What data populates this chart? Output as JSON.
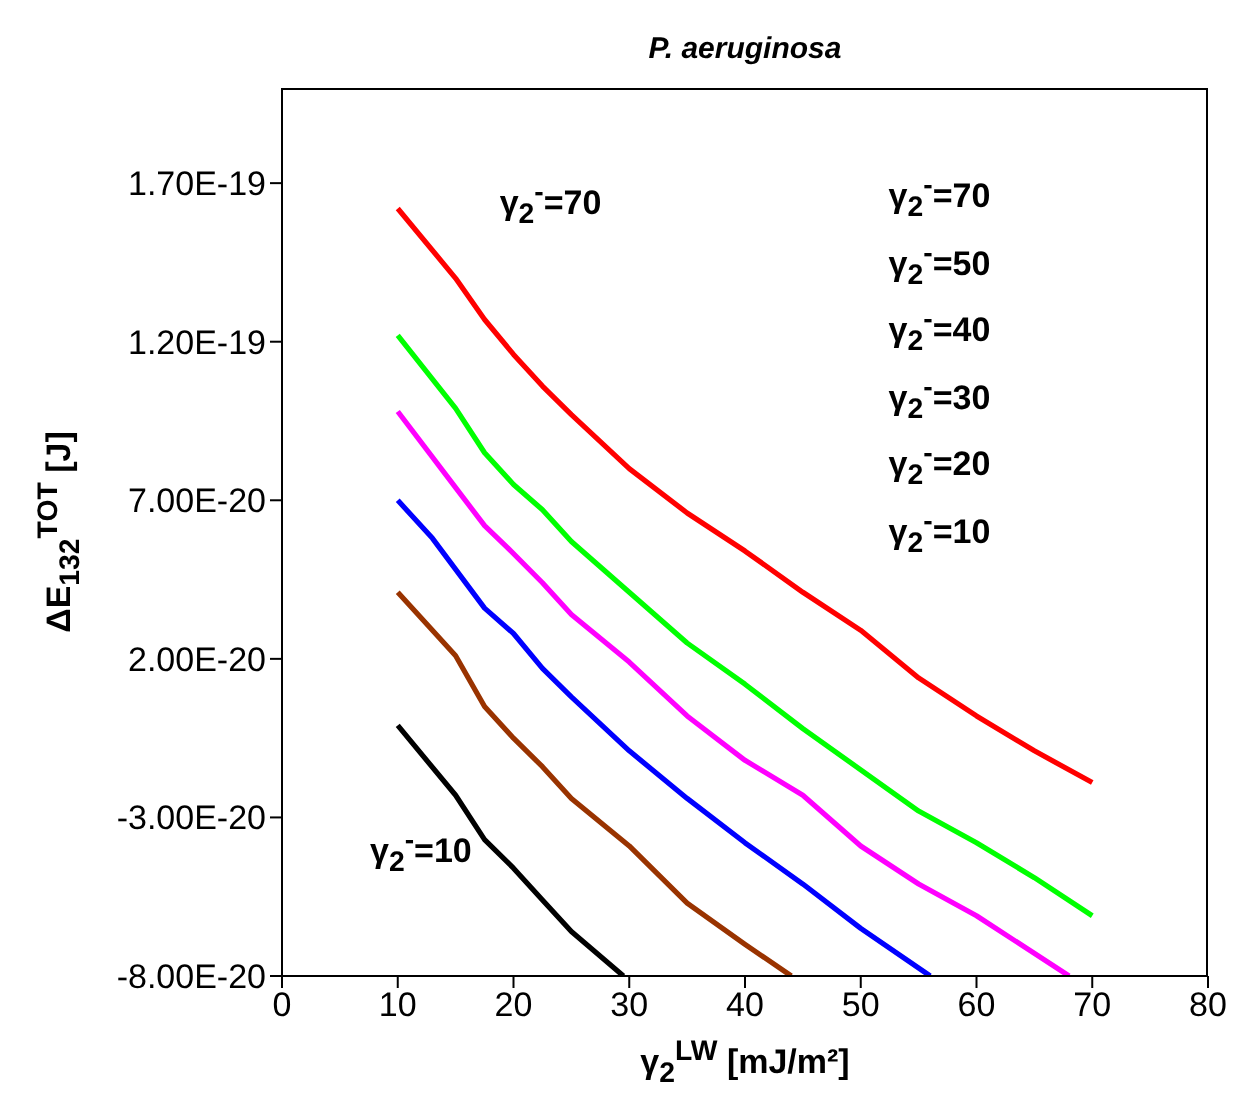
{
  "chart_data": {
    "type": "line",
    "title": "P. aeruginosa",
    "xlabel": "γ$_{2}$$^{LW}$ [mJ/m²]",
    "ylabel": "ΔE$_{132}$$^{TOT}$ [J]",
    "xlim": [
      0,
      80
    ],
    "xticks": [
      0,
      10,
      20,
      30,
      40,
      50,
      60,
      70,
      80
    ],
    "ylim": [
      -8e-20,
      2e-19
    ],
    "yticks": [
      {
        "value": -8e-20,
        "label": "-8.00E-20"
      },
      {
        "value": -3e-20,
        "label": "-3.00E-20"
      },
      {
        "value": 2e-20,
        "label": "2.00E-20"
      },
      {
        "value": 7e-20,
        "label": "7.00E-20"
      },
      {
        "value": 1.2e-19,
        "label": "1.20E-19"
      },
      {
        "value": 1.7e-19,
        "label": "1.70E-19"
      }
    ],
    "marker": "none",
    "line_style": "solid",
    "series": [
      {
        "color": "#ff0000",
        "x": [
          10,
          15,
          17.5,
          20,
          22.5,
          25,
          30,
          35,
          40,
          45,
          50,
          55,
          60,
          65,
          70
        ],
        "values": [
          1.62e-19,
          1.4e-19,
          1.27e-19,
          1.16e-19,
          1.06e-19,
          9.7e-20,
          8e-20,
          6.6e-20,
          5.4e-20,
          4.1e-20,
          2.9e-20,
          1.4e-20,
          2e-21,
          -9e-21,
          -1.9e-20
        ]
      },
      {
        "color": "#00ff00",
        "x": [
          10,
          15,
          17.5,
          20,
          22.5,
          25,
          30,
          35,
          40,
          45,
          50,
          55,
          60,
          65,
          70
        ],
        "values": [
          1.22e-19,
          9.9e-20,
          8.5e-20,
          7.5e-20,
          6.7e-20,
          5.7e-20,
          4.1e-20,
          2.5e-20,
          1.2e-20,
          -2e-21,
          -1.5e-20,
          -2.8e-20,
          -3.8e-20,
          -4.9e-20,
          -6.1e-20
        ]
      },
      {
        "color": "#ff00ff",
        "x": [
          10,
          15,
          17.5,
          19.5,
          22.5,
          25,
          30,
          35,
          40,
          45,
          50,
          55,
          60,
          68
        ],
        "values": [
          9.8e-20,
          7.4e-20,
          6.2e-20,
          5.5e-20,
          4.4e-20,
          3.4e-20,
          1.9e-20,
          2e-21,
          -1.2e-20,
          -2.3e-20,
          -3.9e-20,
          -5.1e-20,
          -6.1e-20,
          -8e-20
        ]
      },
      {
        "color": "#0000ff",
        "x": [
          10,
          13,
          17.5,
          20,
          22.5,
          25,
          30,
          35,
          40,
          45,
          50,
          56
        ],
        "values": [
          7e-20,
          5.8e-20,
          3.6e-20,
          2.8e-20,
          1.7e-20,
          8e-21,
          -9e-21,
          -2.4e-20,
          -3.8e-20,
          -5.1e-20,
          -6.5e-20,
          -8e-20
        ]
      },
      {
        "color": "#993300",
        "x": [
          10,
          15,
          17.5,
          20,
          22.5,
          25,
          30,
          35,
          40,
          44
        ],
        "values": [
          4.1e-20,
          2.1e-20,
          5e-21,
          -5e-21,
          -1.4e-20,
          -2.4e-20,
          -3.9e-20,
          -5.7e-20,
          -7e-20,
          -8e-20
        ]
      },
      {
        "color": "#000000",
        "x": [
          10,
          15,
          17.5,
          20,
          22.5,
          25,
          29.5
        ],
        "values": [
          -1e-21,
          -2.3e-20,
          -3.7e-20,
          -4.6e-20,
          -5.6e-20,
          -6.6e-20,
          -8e-20
        ]
      }
    ],
    "annotations": [
      "γ$_{2}$$^{-}$=70",
      "γ$_{2}$$^{-}$=10",
      "γ$_{2}$$^{-}$=70",
      "γ$_{2}$$^{-}$=50",
      "γ$_{2}$$^{-}$=40",
      "γ$_{2}$$^{-}$=30",
      "γ$_{2}$$^{-}$=20",
      "γ$_{2}$$^{-}$=10"
    ]
  }
}
